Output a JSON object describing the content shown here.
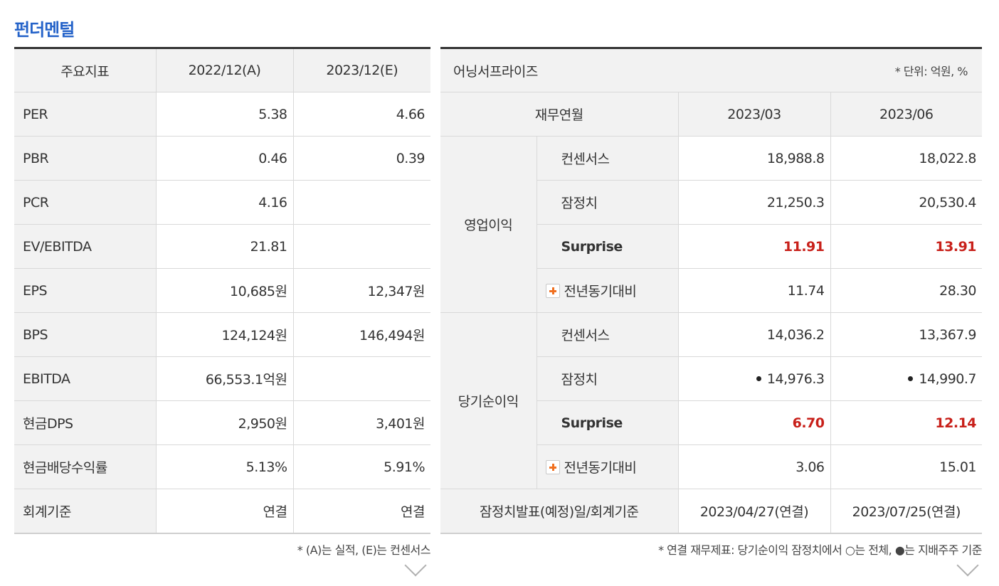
{
  "title": "펀더멘털",
  "left": {
    "headers": [
      "주요지표",
      "2022/12(A)",
      "2023/12(E)"
    ],
    "rows": [
      {
        "label": "PER",
        "a": "5.38",
        "e": "4.66"
      },
      {
        "label": "PBR",
        "a": "0.46",
        "e": "0.39"
      },
      {
        "label": "PCR",
        "a": "4.16",
        "e": ""
      },
      {
        "label": "EV/EBITDA",
        "a": "21.81",
        "e": ""
      },
      {
        "label": "EPS",
        "a": "10,685원",
        "e": "12,347원"
      },
      {
        "label": "BPS",
        "a": "124,124원",
        "e": "146,494원"
      },
      {
        "label": "EBITDA",
        "a": "66,553.1억원",
        "e": ""
      },
      {
        "label": "현금DPS",
        "a": "2,950원",
        "e": "3,401원"
      },
      {
        "label": "현금배당수익률",
        "a": "5.13%",
        "e": "5.91%"
      },
      {
        "label": "회계기준",
        "a": "연결",
        "e": "연결"
      }
    ],
    "note": "* (A)는 실적, (E)는 컨센서스"
  },
  "right": {
    "title": "어닝서프라이즈",
    "unit": "* 단위: 억원, %",
    "col_header": "재무연월",
    "periods": [
      "2023/03",
      "2023/06"
    ],
    "groups": [
      {
        "name": "영업이익",
        "consensus_label": "컨센서스",
        "consensus": [
          "18,988.8",
          "18,022.8"
        ],
        "prelim_label": "잠정치",
        "prelim": [
          "21,250.3",
          "20,530.4"
        ],
        "surprise_label": "Surprise",
        "surprise": [
          "11.91",
          "13.91"
        ],
        "yoy_label": "전년동기대비",
        "yoy": [
          "11.74",
          "28.30"
        ]
      },
      {
        "name": "당기순이익",
        "consensus_label": "컨센서스",
        "consensus": [
          "14,036.2",
          "13,367.9"
        ],
        "prelim_label": "잠정치",
        "prelim": [
          "14,976.3",
          "14,990.7"
        ],
        "surprise_label": "Surprise",
        "surprise": [
          "6.70",
          "12.14"
        ],
        "yoy_label": "전년동기대비",
        "yoy": [
          "3.06",
          "15.01"
        ]
      }
    ],
    "footer_label": "잠정치발표(예정)일/회계기준",
    "footer_values": [
      "2023/04/27(연결)",
      "2023/07/25(연결)"
    ],
    "note": "* 연결 재무제표: 당기순이익 잠정치에서 ○는 전체, ●는 지배주주 기준"
  },
  "colors": {
    "title": "#2563c9",
    "surprise": "#c8201a",
    "plus_icon": "#f07020"
  }
}
